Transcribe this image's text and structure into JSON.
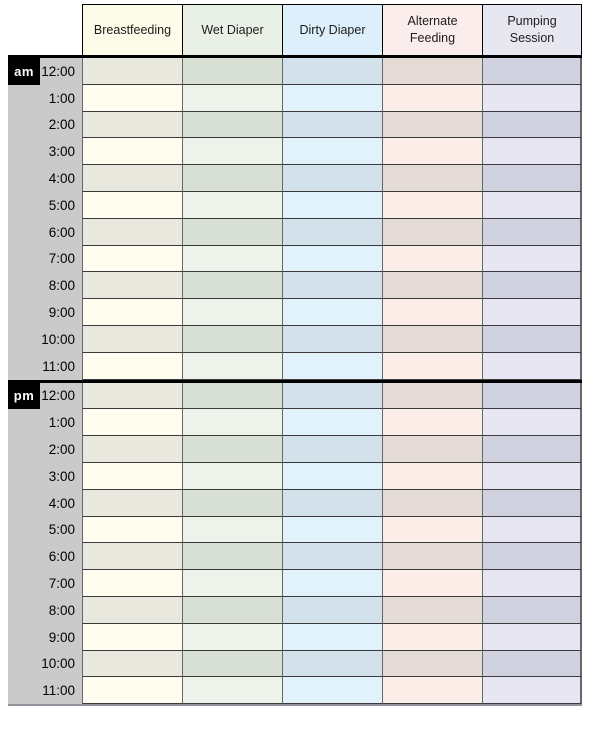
{
  "document": {
    "type": "baby-daily-log-tracker",
    "columns": [
      {
        "id": "breastfeeding",
        "label": "Breastfeeding",
        "header_bg": "#fcfce9",
        "row_light": "#fefdf0",
        "row_dark": "#e8e8de"
      },
      {
        "id": "wet-diaper",
        "label": "Wet Diaper",
        "header_bg": "#e9f1e7",
        "row_light": "#edf3ea",
        "row_dark": "#d8dfd5"
      },
      {
        "id": "dirty-diaper",
        "label": "Dirty Diaper",
        "header_bg": "#dceffa",
        "row_light": "#e2f2fb",
        "row_dark": "#d3e2ea"
      },
      {
        "id": "alternate-feeding",
        "label": "Alternate Feeding",
        "header_bg": "#fbedeb",
        "row_light": "#fbeee9",
        "row_dark": "#e4dbd6"
      },
      {
        "id": "pumping-session",
        "label": "Pumping Session",
        "header_bg": "#e7e7f2",
        "row_light": "#e7e6f2",
        "row_dark": "#d1d2df"
      }
    ],
    "sections": [
      {
        "meridiem": "am",
        "times": [
          "12:00",
          "1:00",
          "2:00",
          "3:00",
          "4:00",
          "5:00",
          "6:00",
          "7:00",
          "8:00",
          "9:00",
          "10:00",
          "11:00"
        ]
      },
      {
        "meridiem": "pm",
        "times": [
          "12:00",
          "1:00",
          "2:00",
          "3:00",
          "4:00",
          "5:00",
          "6:00",
          "7:00",
          "8:00",
          "9:00",
          "10:00",
          "11:00"
        ]
      }
    ],
    "colors": {
      "time_column_bg": "#cacaca",
      "meridiem_bg": "#000000",
      "meridiem_text": "#ffffff",
      "thick_separator": "#000000",
      "header_border": "#000000",
      "grid_horizontal": "#3a3a3a",
      "grid_vertical": "#63696b",
      "outer_bottom_border": "#8f959a",
      "page_bg": "#ffffff"
    }
  }
}
